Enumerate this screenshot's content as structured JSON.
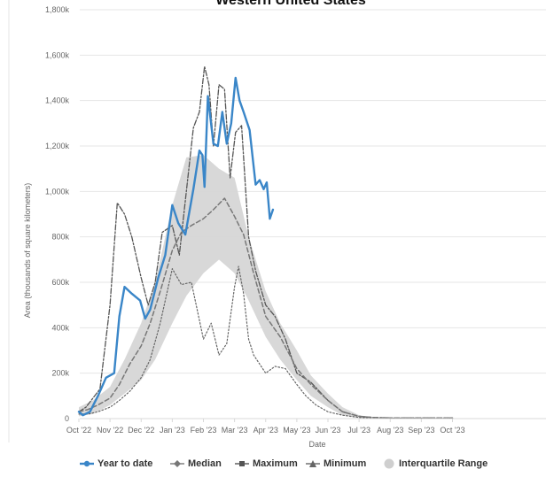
{
  "chart_data": {
    "type": "line",
    "title": "Western United States",
    "xlabel": "Date",
    "ylabel": "Area (thousands of square kilometers)",
    "ylim": [
      0,
      1800
    ],
    "yticks": [
      "0",
      "200k",
      "400k",
      "600k",
      "800k",
      "1,000k",
      "1,200k",
      "1,400k",
      "1,600k",
      "1,800k"
    ],
    "xtick_labels": [
      "Oct '22",
      "Nov '22",
      "Dec '22",
      "Jan '23",
      "Feb '23",
      "Mar '23",
      "Apr '23",
      "May '23",
      "Jun '23",
      "Jul '23",
      "Aug '23",
      "Sep '23",
      "Oct '23"
    ],
    "grid": true,
    "legend_position": "bottom",
    "colors": {
      "year_to_date": "#3a86c8",
      "median": "#777777",
      "maximum": "#555555",
      "minimum": "#666666",
      "iqr": "#d6d6d6",
      "grid": "#e6e6e6",
      "title": "#111111",
      "text": "#666666"
    },
    "series": [
      {
        "name": "Year to date",
        "x": [
          "2022-10-01",
          "2022-10-05",
          "2022-10-12",
          "2022-10-20",
          "2022-10-28",
          "2022-11-05",
          "2022-11-10",
          "2022-11-15",
          "2022-11-22",
          "2022-11-30",
          "2022-12-05",
          "2022-12-10",
          "2022-12-18",
          "2022-12-25",
          "2023-01-01",
          "2023-01-07",
          "2023-01-14",
          "2023-01-22",
          "2023-01-28",
          "2023-01-31",
          "2023-02-02",
          "2023-02-05",
          "2023-02-10",
          "2023-02-14",
          "2023-02-18",
          "2023-02-22",
          "2023-02-26",
          "2023-03-02",
          "2023-03-06",
          "2023-03-10",
          "2023-03-16",
          "2023-03-22",
          "2023-03-26",
          "2023-03-30",
          "2023-04-02",
          "2023-04-05",
          "2023-04-08"
        ],
        "values": [
          30,
          15,
          30,
          100,
          180,
          200,
          450,
          580,
          550,
          520,
          440,
          480,
          620,
          720,
          940,
          860,
          810,
          1010,
          1180,
          1160,
          1020,
          1420,
          1210,
          1200,
          1350,
          1210,
          1300,
          1500,
          1400,
          1350,
          1270,
          1030,
          1050,
          1010,
          1040,
          880,
          920
        ]
      },
      {
        "name": "Median",
        "x": [
          "2022-10-01",
          "2022-10-10",
          "2022-10-20",
          "2022-11-01",
          "2022-11-10",
          "2022-11-20",
          "2022-12-01",
          "2022-12-10",
          "2022-12-20",
          "2023-01-01",
          "2023-01-10",
          "2023-01-20",
          "2023-02-01",
          "2023-02-10",
          "2023-02-20",
          "2023-03-01",
          "2023-03-10",
          "2023-03-20",
          "2023-04-01",
          "2023-04-15",
          "2023-05-01",
          "2023-05-15",
          "2023-06-01",
          "2023-06-15",
          "2023-07-01",
          "2023-07-15",
          "2023-08-01",
          "2023-09-01",
          "2023-10-01"
        ],
        "values": [
          30,
          40,
          60,
          90,
          150,
          240,
          320,
          420,
          560,
          740,
          820,
          850,
          880,
          920,
          970,
          890,
          810,
          640,
          450,
          360,
          220,
          150,
          80,
          30,
          10,
          5,
          3,
          3,
          3
        ]
      },
      {
        "name": "Maximum",
        "x": [
          "2022-10-01",
          "2022-10-08",
          "2022-10-15",
          "2022-10-22",
          "2022-11-01",
          "2022-11-08",
          "2022-11-15",
          "2022-11-22",
          "2022-12-01",
          "2022-12-08",
          "2022-12-15",
          "2022-12-22",
          "2023-01-01",
          "2023-01-08",
          "2023-01-15",
          "2023-01-22",
          "2023-01-28",
          "2023-02-02",
          "2023-02-06",
          "2023-02-10",
          "2023-02-15",
          "2023-02-20",
          "2023-02-25",
          "2023-03-02",
          "2023-03-08",
          "2023-03-15",
          "2023-03-22",
          "2023-04-01",
          "2023-04-10",
          "2023-04-20",
          "2023-05-01",
          "2023-05-15",
          "2023-06-01",
          "2023-06-15",
          "2023-07-01",
          "2023-07-15",
          "2023-08-01",
          "2023-09-01",
          "2023-10-01"
        ],
        "values": [
          30,
          50,
          90,
          130,
          500,
          950,
          900,
          800,
          620,
          500,
          600,
          820,
          850,
          720,
          1000,
          1280,
          1350,
          1550,
          1470,
          1200,
          1470,
          1450,
          1060,
          1260,
          1290,
          800,
          650,
          500,
          450,
          350,
          200,
          160,
          80,
          30,
          10,
          5,
          3,
          3,
          3
        ]
      },
      {
        "name": "Minimum",
        "x": [
          "2022-10-01",
          "2022-10-10",
          "2022-10-20",
          "2022-11-01",
          "2022-11-10",
          "2022-11-20",
          "2022-12-01",
          "2022-12-10",
          "2022-12-20",
          "2023-01-01",
          "2023-01-10",
          "2023-01-20",
          "2023-02-01",
          "2023-02-08",
          "2023-02-15",
          "2023-02-22",
          "2023-03-01",
          "2023-03-05",
          "2023-03-10",
          "2023-03-15",
          "2023-03-20",
          "2023-04-01",
          "2023-04-10",
          "2023-04-20",
          "2023-05-01",
          "2023-05-10",
          "2023-05-20",
          "2023-06-01",
          "2023-06-15",
          "2023-07-01",
          "2023-07-15",
          "2023-08-01",
          "2023-09-01",
          "2023-10-01"
        ],
        "values": [
          20,
          20,
          30,
          50,
          80,
          120,
          180,
          260,
          420,
          660,
          590,
          600,
          350,
          420,
          280,
          330,
          580,
          670,
          550,
          350,
          280,
          200,
          230,
          220,
          150,
          100,
          60,
          30,
          15,
          5,
          3,
          2,
          2,
          2
        ]
      },
      {
        "name": "Interquartile Range",
        "x": [
          "2022-10-01",
          "2022-10-15",
          "2022-11-01",
          "2022-11-15",
          "2022-12-01",
          "2022-12-15",
          "2023-01-01",
          "2023-01-15",
          "2023-02-01",
          "2023-02-15",
          "2023-03-01",
          "2023-03-15",
          "2023-04-01",
          "2023-04-15",
          "2023-05-01",
          "2023-05-15",
          "2023-06-01",
          "2023-06-15",
          "2023-07-01",
          "2023-07-15",
          "2023-08-01",
          "2023-09-01",
          "2023-10-01"
        ],
        "low": [
          10,
          20,
          60,
          110,
          170,
          260,
          420,
          540,
          640,
          700,
          640,
          520,
          360,
          260,
          170,
          100,
          50,
          15,
          3,
          1,
          0,
          0,
          0
        ],
        "high": [
          50,
          80,
          140,
          260,
          420,
          600,
          940,
          1150,
          1160,
          1100,
          1060,
          800,
          560,
          420,
          300,
          190,
          110,
          50,
          15,
          5,
          3,
          3,
          3
        ]
      }
    ],
    "legend": [
      {
        "label": "Year to date",
        "symbol": "circle-line"
      },
      {
        "label": "Median",
        "symbol": "diamond-line"
      },
      {
        "label": "Maximum",
        "symbol": "square-line"
      },
      {
        "label": "Minimum",
        "symbol": "triangle-line"
      },
      {
        "label": "Interquartile Range",
        "symbol": "circle"
      }
    ]
  }
}
